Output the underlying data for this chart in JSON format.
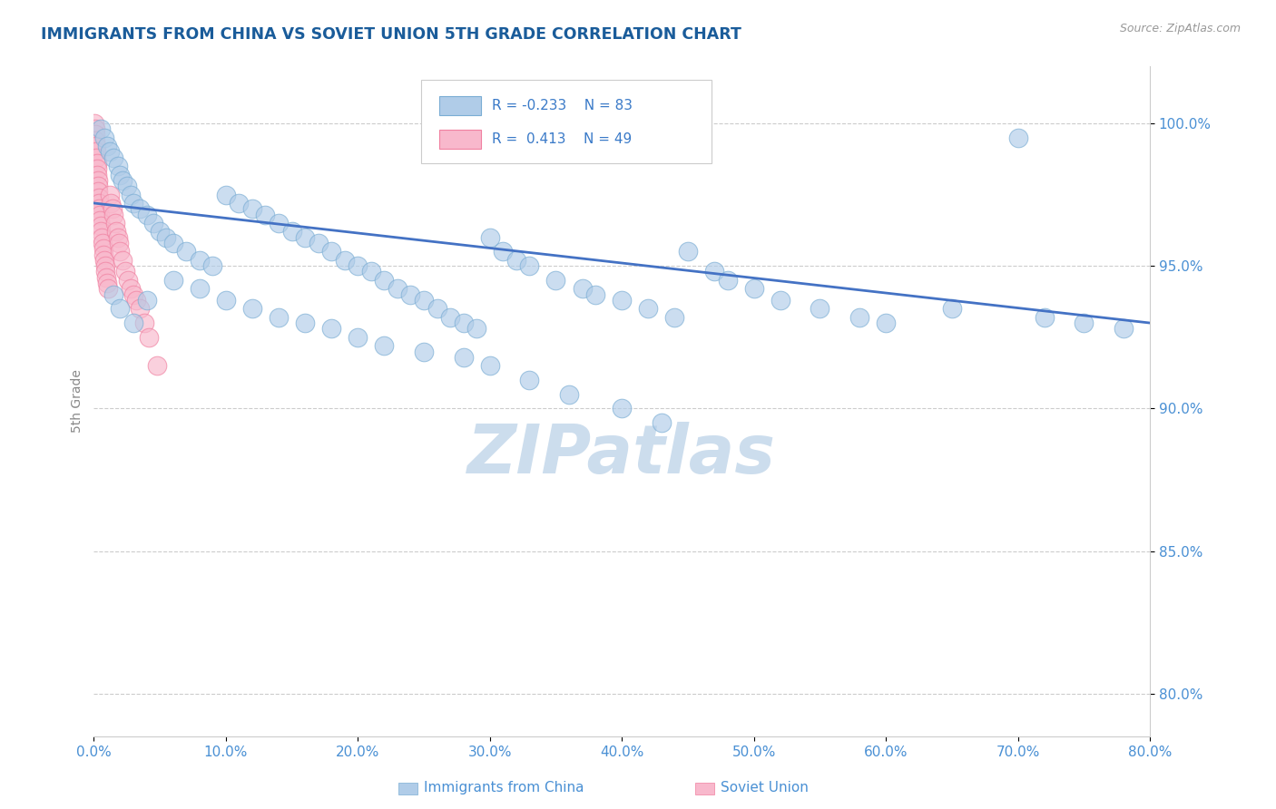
{
  "title": "IMMIGRANTS FROM CHINA VS SOVIET UNION 5TH GRADE CORRELATION CHART",
  "source_text": "Source: ZipAtlas.com",
  "ylabel": "5th Grade",
  "x_tick_labels": [
    "0.0%",
    "10.0%",
    "20.0%",
    "30.0%",
    "40.0%",
    "50.0%",
    "60.0%",
    "70.0%",
    "80.0%"
  ],
  "x_tick_values": [
    0.0,
    10.0,
    20.0,
    30.0,
    40.0,
    50.0,
    60.0,
    70.0,
    80.0
  ],
  "y_tick_labels_right": [
    "80.0%",
    "85.0%",
    "90.0%",
    "95.0%",
    "100.0%"
  ],
  "y_tick_values": [
    80.0,
    85.0,
    90.0,
    95.0,
    100.0
  ],
  "xlim": [
    0.0,
    80.0
  ],
  "ylim": [
    78.5,
    102.0
  ],
  "china_color": "#b0cce8",
  "china_edge_color": "#7aadd4",
  "soviet_color": "#f8b8cc",
  "soviet_edge_color": "#f080a0",
  "trendline_color": "#4472c4",
  "watermark_text": "ZIPatlas",
  "watermark_color": "#ccdded",
  "title_color": "#1a5c9a",
  "axis_label_color": "#888888",
  "tick_label_color": "#4a90d4",
  "background_color": "#ffffff",
  "legend_text_color": "#3a7ac8",
  "legend_box_color_china": "#b0cce8",
  "legend_box_color_soviet": "#f8b8cc",
  "china_scatter_x": [
    0.5,
    0.8,
    1.0,
    1.2,
    1.5,
    1.8,
    2.0,
    2.2,
    2.5,
    2.8,
    3.0,
    3.5,
    4.0,
    4.5,
    5.0,
    5.5,
    6.0,
    7.0,
    8.0,
    9.0,
    10.0,
    11.0,
    12.0,
    13.0,
    14.0,
    15.0,
    16.0,
    17.0,
    18.0,
    19.0,
    20.0,
    21.0,
    22.0,
    23.0,
    24.0,
    25.0,
    26.0,
    27.0,
    28.0,
    29.0,
    30.0,
    31.0,
    32.0,
    33.0,
    35.0,
    37.0,
    38.0,
    40.0,
    42.0,
    44.0,
    45.0,
    47.0,
    48.0,
    50.0,
    52.0,
    55.0,
    58.0,
    60.0,
    65.0,
    70.0,
    72.0,
    75.0,
    78.0,
    1.5,
    2.0,
    3.0,
    4.0,
    6.0,
    8.0,
    10.0,
    12.0,
    14.0,
    16.0,
    18.0,
    20.0,
    22.0,
    25.0,
    28.0,
    30.0,
    33.0,
    36.0,
    40.0,
    43.0
  ],
  "china_scatter_y": [
    99.8,
    99.5,
    99.2,
    99.0,
    98.8,
    98.5,
    98.2,
    98.0,
    97.8,
    97.5,
    97.2,
    97.0,
    96.8,
    96.5,
    96.2,
    96.0,
    95.8,
    95.5,
    95.2,
    95.0,
    97.5,
    97.2,
    97.0,
    96.8,
    96.5,
    96.2,
    96.0,
    95.8,
    95.5,
    95.2,
    95.0,
    94.8,
    94.5,
    94.2,
    94.0,
    93.8,
    93.5,
    93.2,
    93.0,
    92.8,
    96.0,
    95.5,
    95.2,
    95.0,
    94.5,
    94.2,
    94.0,
    93.8,
    93.5,
    93.2,
    95.5,
    94.8,
    94.5,
    94.2,
    93.8,
    93.5,
    93.2,
    93.0,
    93.5,
    99.5,
    93.2,
    93.0,
    92.8,
    94.0,
    93.5,
    93.0,
    93.8,
    94.5,
    94.2,
    93.8,
    93.5,
    93.2,
    93.0,
    92.8,
    92.5,
    92.2,
    92.0,
    91.8,
    91.5,
    91.0,
    90.5,
    90.0,
    89.5
  ],
  "soviet_scatter_x": [
    0.05,
    0.08,
    0.1,
    0.12,
    0.15,
    0.18,
    0.2,
    0.22,
    0.25,
    0.28,
    0.3,
    0.33,
    0.35,
    0.38,
    0.4,
    0.42,
    0.45,
    0.48,
    0.5,
    0.55,
    0.6,
    0.65,
    0.7,
    0.75,
    0.8,
    0.85,
    0.9,
    0.95,
    1.0,
    1.1,
    1.2,
    1.3,
    1.4,
    1.5,
    1.6,
    1.7,
    1.8,
    1.9,
    2.0,
    2.2,
    2.4,
    2.6,
    2.8,
    3.0,
    3.2,
    3.5,
    3.8,
    4.2,
    4.8
  ],
  "soviet_scatter_y": [
    100.0,
    99.8,
    99.6,
    99.4,
    99.2,
    99.0,
    98.8,
    98.6,
    98.4,
    98.2,
    98.0,
    97.8,
    97.6,
    97.4,
    97.2,
    97.0,
    96.8,
    96.6,
    96.4,
    96.2,
    96.0,
    95.8,
    95.6,
    95.4,
    95.2,
    95.0,
    94.8,
    94.6,
    94.4,
    94.2,
    97.5,
    97.2,
    97.0,
    96.8,
    96.5,
    96.2,
    96.0,
    95.8,
    95.5,
    95.2,
    94.8,
    94.5,
    94.2,
    94.0,
    93.8,
    93.5,
    93.0,
    92.5,
    91.5
  ],
  "trendline_x": [
    0.0,
    80.0
  ],
  "trendline_y": [
    97.2,
    93.0
  ]
}
